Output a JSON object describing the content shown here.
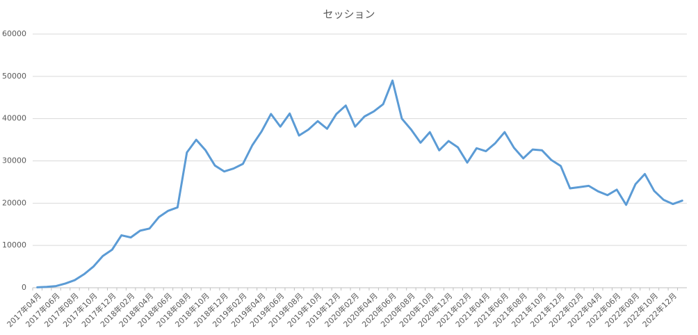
{
  "chart_data": {
    "type": "line",
    "title": "セッション",
    "categories": [
      "2017年04月",
      null,
      "2017年06月",
      null,
      "2017年08月",
      null,
      "2017年10月",
      null,
      "2017年12月",
      null,
      "2018年02月",
      null,
      "2018年04月",
      null,
      "2018年06月",
      null,
      "2018年08月",
      null,
      "2018年10月",
      null,
      "2018年12月",
      null,
      "2019年02月",
      null,
      "2019年04月",
      null,
      "2019年06月",
      null,
      "2019年08月",
      null,
      "2019年10月",
      null,
      "2019年12月",
      null,
      "2020年02月",
      null,
      "2020年04月",
      null,
      "2020年06月",
      null,
      "2020年08月",
      null,
      "2020年10月",
      null,
      "2020年12月",
      null,
      "2021年02月",
      null,
      "2021年04月",
      null,
      "2021年06月",
      null,
      "2021年08月",
      null,
      "2021年10月",
      null,
      "2021年12月",
      null,
      "2022年02月",
      null,
      "2022年04月",
      null,
      "2022年06月",
      null,
      "2022年08月",
      null,
      "2022年10月",
      null,
      "2022年12月",
      null
    ],
    "values": [
      100,
      200,
      400,
      1000,
      1800,
      3200,
      5000,
      7500,
      9000,
      12400,
      11900,
      13500,
      14000,
      16700,
      18200,
      19000,
      32000,
      35000,
      32500,
      28900,
      27500,
      28200,
      29300,
      33700,
      37000,
      41100,
      38100,
      41200,
      36000,
      37400,
      39400,
      37600,
      41100,
      43100,
      38100,
      40500,
      41700,
      43400,
      49000,
      40000,
      37400,
      34300,
      36800,
      32500,
      34700,
      33200,
      29600,
      33000,
      32300,
      34200,
      36800,
      33100,
      30600,
      32700,
      32500,
      30200,
      28800,
      23500,
      23800,
      24100,
      22800,
      21900,
      23200,
      19600,
      24500,
      26900,
      22900,
      20800,
      19800,
      20600
    ],
    "color": "#5b9bd5",
    "ylim": [
      0,
      60000
    ],
    "yticks": [
      0,
      10000,
      20000,
      30000,
      40000,
      50000,
      60000
    ],
    "grid": true
  }
}
